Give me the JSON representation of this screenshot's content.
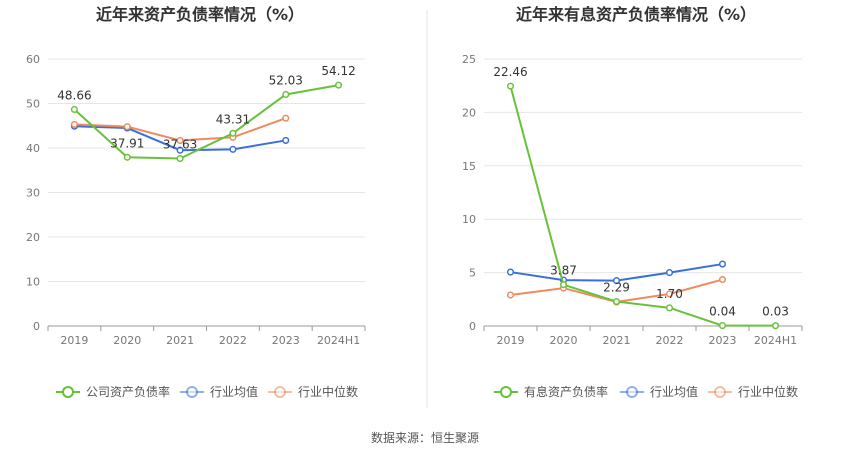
{
  "source": "数据来源：恒生聚源",
  "colors": {
    "company": "#67c23a",
    "avg": "#3a6fd8",
    "median": "#ee8a5f",
    "grid": "#e6e6e6",
    "axis": "#999999"
  },
  "chart_data": [
    {
      "type": "line",
      "title": "近年来资产负债率情况（%）",
      "categories": [
        "2019",
        "2020",
        "2021",
        "2022",
        "2023",
        "2024H1"
      ],
      "ylim": [
        0,
        60
      ],
      "yticks": [
        0,
        10,
        20,
        30,
        40,
        50,
        60
      ],
      "series": [
        {
          "name": "公司资产负债率",
          "key": "company",
          "values": [
            48.66,
            37.91,
            37.63,
            43.31,
            52.03,
            54.12
          ],
          "labels": [
            "48.66",
            "37.91",
            "37.63",
            "43.31",
            "52.03",
            "54.12"
          ]
        },
        {
          "name": "行业均值",
          "key": "avg",
          "values": [
            44.9,
            44.5,
            39.5,
            39.7,
            41.7,
            null
          ]
        },
        {
          "name": "行业中位数",
          "key": "median",
          "values": [
            45.3,
            44.8,
            41.7,
            42.4,
            46.7,
            null
          ]
        }
      ]
    },
    {
      "type": "line",
      "title": "近年来有息资产负债率情况（%）",
      "categories": [
        "2019",
        "2020",
        "2021",
        "2022",
        "2023",
        "2024H1"
      ],
      "ylim": [
        0,
        25
      ],
      "yticks": [
        0,
        5,
        10,
        15,
        20,
        25
      ],
      "series": [
        {
          "name": "有息资产负债率",
          "key": "company",
          "values": [
            22.46,
            3.87,
            2.29,
            1.7,
            0.04,
            0.03
          ],
          "labels": [
            "22.46",
            "3.87",
            "2.29",
            "1.70",
            "0.04",
            "0.03"
          ]
        },
        {
          "name": "行业均值",
          "key": "avg",
          "values": [
            5.05,
            4.3,
            4.25,
            5.0,
            5.8,
            null
          ]
        },
        {
          "name": "行业中位数",
          "key": "median",
          "values": [
            2.9,
            3.55,
            2.25,
            3.0,
            4.35,
            null
          ]
        }
      ]
    }
  ]
}
